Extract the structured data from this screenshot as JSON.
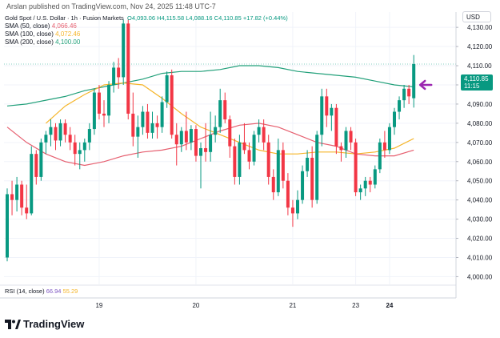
{
  "header": {
    "publisher": "Arslan published on TradingView.com, Nov 24, 2025 11:48 UTC-7",
    "symbol": "Gold Spot / U.S. Dollar · 1h · Fusion Markets",
    "ohlc": "O4,093.06  H4,115.58  L4,088.16  C4,110.85  +17.82 (+0.44%)"
  },
  "legend": [
    {
      "name": "SMA (50, close)",
      "value": "4,066.46",
      "color": "#e65f6f"
    },
    {
      "name": "SMA (100, close)",
      "value": "4,072.46",
      "color": "#f5b52a"
    },
    {
      "name": "SMA (200, close)",
      "value": "4,100.00",
      "color": "#22a07a"
    }
  ],
  "rsi": {
    "name": "RSI (14, close)",
    "value1": "66.94",
    "value2": "55.29",
    "color1": "#7e57c2",
    "color2": "#f5b52a"
  },
  "currency": "USD",
  "last_price": {
    "value": "4,110.85",
    "countdown": "11:15"
  },
  "brand": "TradingView",
  "chart_data": {
    "type": "candlestick",
    "y_ticks": [
      4000,
      4010,
      4020,
      4030,
      4040,
      4050,
      4060,
      4070,
      4080,
      4090,
      4100,
      4110,
      4120,
      4130
    ],
    "y_tick_labels": [
      "4,000.00",
      "4,010.00",
      "4,020.00",
      "4,030.00",
      "4,040.00",
      "4,050.00",
      "4,060.00",
      "4,070.00",
      "4,080.00",
      "4,090.00",
      "4,100.00",
      "4,110.00",
      "4,120.00",
      "4,130.00"
    ],
    "ylim": [
      3996,
      4138
    ],
    "x_labels": [
      {
        "label": "19",
        "index": 19,
        "bold": false
      },
      {
        "label": "20",
        "index": 39,
        "bold": false
      },
      {
        "label": "21",
        "index": 59,
        "bold": false
      },
      {
        "label": "23",
        "index": 72,
        "bold": false
      },
      {
        "label": "24",
        "index": 79,
        "bold": true
      }
    ],
    "candles": [
      [
        4010,
        4046,
        4008,
        4043
      ],
      [
        4043,
        4050,
        4032,
        4040
      ],
      [
        4040,
        4052,
        4034,
        4048
      ],
      [
        4048,
        4050,
        4032,
        4036
      ],
      [
        4036,
        4048,
        4030,
        4033
      ],
      [
        4033,
        4068,
        4032,
        4064
      ],
      [
        4064,
        4066,
        4048,
        4052
      ],
      [
        4052,
        4072,
        4050,
        4070
      ],
      [
        4070,
        4076,
        4064,
        4074
      ],
      [
        4074,
        4082,
        4068,
        4078
      ],
      [
        4078,
        4080,
        4066,
        4071
      ],
      [
        4071,
        4082,
        4068,
        4080
      ],
      [
        4080,
        4082,
        4070,
        4074
      ],
      [
        4074,
        4078,
        4066,
        4070
      ],
      [
        4070,
        4074,
        4058,
        4064
      ],
      [
        4064,
        4070,
        4056,
        4066
      ],
      [
        4066,
        4072,
        4060,
        4070
      ],
      [
        4070,
        4080,
        4066,
        4077
      ],
      [
        4077,
        4098,
        4074,
        4096
      ],
      [
        4096,
        4100,
        4082,
        4085
      ],
      [
        4085,
        4092,
        4078,
        4084
      ],
      [
        4084,
        4102,
        4080,
        4100
      ],
      [
        4100,
        4112,
        4096,
        4109
      ],
      [
        4109,
        4114,
        4098,
        4104
      ],
      [
        4104,
        4134,
        4100,
        4132
      ],
      [
        4132,
        4134,
        4082,
        4085
      ],
      [
        4085,
        4096,
        4068,
        4073
      ],
      [
        4073,
        4084,
        4062,
        4078
      ],
      [
        4078,
        4089,
        4074,
        4086
      ],
      [
        4086,
        4090,
        4072,
        4075
      ],
      [
        4075,
        4086,
        4072,
        4080
      ],
      [
        4080,
        4084,
        4072,
        4078
      ],
      [
        4078,
        4094,
        4075,
        4091
      ],
      [
        4091,
        4107,
        4088,
        4105
      ],
      [
        4105,
        4108,
        4072,
        4074
      ],
      [
        4074,
        4080,
        4058,
        4069
      ],
      [
        4069,
        4078,
        4065,
        4076
      ],
      [
        4076,
        4086,
        4066,
        4070
      ],
      [
        4070,
        4079,
        4066,
        4077
      ],
      [
        4077,
        4079,
        4060,
        4063
      ],
      [
        4063,
        4070,
        4046,
        4067
      ],
      [
        4067,
        4080,
        4060,
        4065
      ],
      [
        4065,
        4086,
        4060,
        4074
      ],
      [
        4074,
        4084,
        4070,
        4078
      ],
      [
        4078,
        4098,
        4075,
        4092
      ],
      [
        4092,
        4096,
        4080,
        4082
      ],
      [
        4082,
        4084,
        4062,
        4068
      ],
      [
        4068,
        4072,
        4048,
        4052
      ],
      [
        4052,
        4074,
        4048,
        4070
      ],
      [
        4070,
        4080,
        4064,
        4066
      ],
      [
        4066,
        4070,
        4056,
        4060
      ],
      [
        4060,
        4076,
        4058,
        4074
      ],
      [
        4074,
        4082,
        4070,
        4078
      ],
      [
        4078,
        4082,
        4066,
        4070
      ],
      [
        4070,
        4074,
        4048,
        4052
      ],
      [
        4052,
        4056,
        4040,
        4044
      ],
      [
        4044,
        4072,
        4042,
        4066
      ],
      [
        4066,
        4070,
        4046,
        4050
      ],
      [
        4050,
        4054,
        4032,
        4036
      ],
      [
        4036,
        4040,
        4026,
        4033
      ],
      [
        4033,
        4045,
        4030,
        4040
      ],
      [
        4040,
        4058,
        4038,
        4055
      ],
      [
        4055,
        4066,
        4052,
        4062
      ],
      [
        4062,
        4068,
        4036,
        4040
      ],
      [
        4040,
        4076,
        4038,
        4074
      ],
      [
        4074,
        4098,
        4068,
        4094
      ],
      [
        4094,
        4098,
        4078,
        4084
      ],
      [
        4084,
        4090,
        4076,
        4088
      ],
      [
        4088,
        4090,
        4064,
        4068
      ],
      [
        4068,
        4070,
        4060,
        4066
      ],
      [
        4066,
        4078,
        4062,
        4076
      ],
      [
        4076,
        4078,
        4066,
        4070
      ],
      [
        4070,
        4072,
        4042,
        4044
      ],
      [
        4044,
        4048,
        4040,
        4046
      ],
      [
        4046,
        4052,
        4042,
        4050
      ],
      [
        4050,
        4052,
        4044,
        4048
      ],
      [
        4048,
        4058,
        4046,
        4056
      ],
      [
        4056,
        4072,
        4054,
        4070
      ],
      [
        4070,
        4076,
        4062,
        4066
      ],
      [
        4066,
        4080,
        4064,
        4078
      ],
      [
        4078,
        4088,
        4074,
        4086
      ],
      [
        4086,
        4094,
        4082,
        4092
      ],
      [
        4092,
        4100,
        4088,
        4098
      ],
      [
        4098,
        4100,
        4090,
        4094
      ],
      [
        4093.06,
        4115.58,
        4088.16,
        4110.85
      ]
    ],
    "sma50": [
      [
        0,
        4078
      ],
      [
        4,
        4070
      ],
      [
        8,
        4064
      ],
      [
        12,
        4060
      ],
      [
        16,
        4058
      ],
      [
        20,
        4060
      ],
      [
        24,
        4063
      ],
      [
        28,
        4065
      ],
      [
        32,
        4066
      ],
      [
        36,
        4068
      ],
      [
        40,
        4072
      ],
      [
        44,
        4076
      ],
      [
        48,
        4079
      ],
      [
        52,
        4080
      ],
      [
        56,
        4078
      ],
      [
        60,
        4074
      ],
      [
        64,
        4070
      ],
      [
        68,
        4068
      ],
      [
        72,
        4064
      ],
      [
        76,
        4063
      ],
      [
        80,
        4063
      ],
      [
        84,
        4066
      ]
    ],
    "sma100": [
      [
        8,
        4080
      ],
      [
        12,
        4089
      ],
      [
        16,
        4095
      ],
      [
        20,
        4100
      ],
      [
        24,
        4101
      ],
      [
        28,
        4100
      ],
      [
        32,
        4093
      ],
      [
        36,
        4085
      ],
      [
        40,
        4078
      ],
      [
        44,
        4074
      ],
      [
        48,
        4070
      ],
      [
        52,
        4066
      ],
      [
        56,
        4064
      ],
      [
        60,
        4064
      ],
      [
        64,
        4065
      ],
      [
        68,
        4065
      ],
      [
        72,
        4064
      ],
      [
        76,
        4065
      ],
      [
        80,
        4067
      ],
      [
        84,
        4072
      ]
    ],
    "sma200": [
      [
        0,
        4089
      ],
      [
        4,
        4090
      ],
      [
        8,
        4092
      ],
      [
        12,
        4094
      ],
      [
        16,
        4097
      ],
      [
        20,
        4099
      ],
      [
        24,
        4101
      ],
      [
        28,
        4103
      ],
      [
        32,
        4106
      ],
      [
        36,
        4107
      ],
      [
        40,
        4107
      ],
      [
        44,
        4108
      ],
      [
        48,
        4110
      ],
      [
        52,
        4110
      ],
      [
        56,
        4109
      ],
      [
        60,
        4107
      ],
      [
        64,
        4106
      ],
      [
        68,
        4105
      ],
      [
        72,
        4104
      ],
      [
        76,
        4102
      ],
      [
        80,
        4100
      ],
      [
        84,
        4099
      ]
    ]
  }
}
